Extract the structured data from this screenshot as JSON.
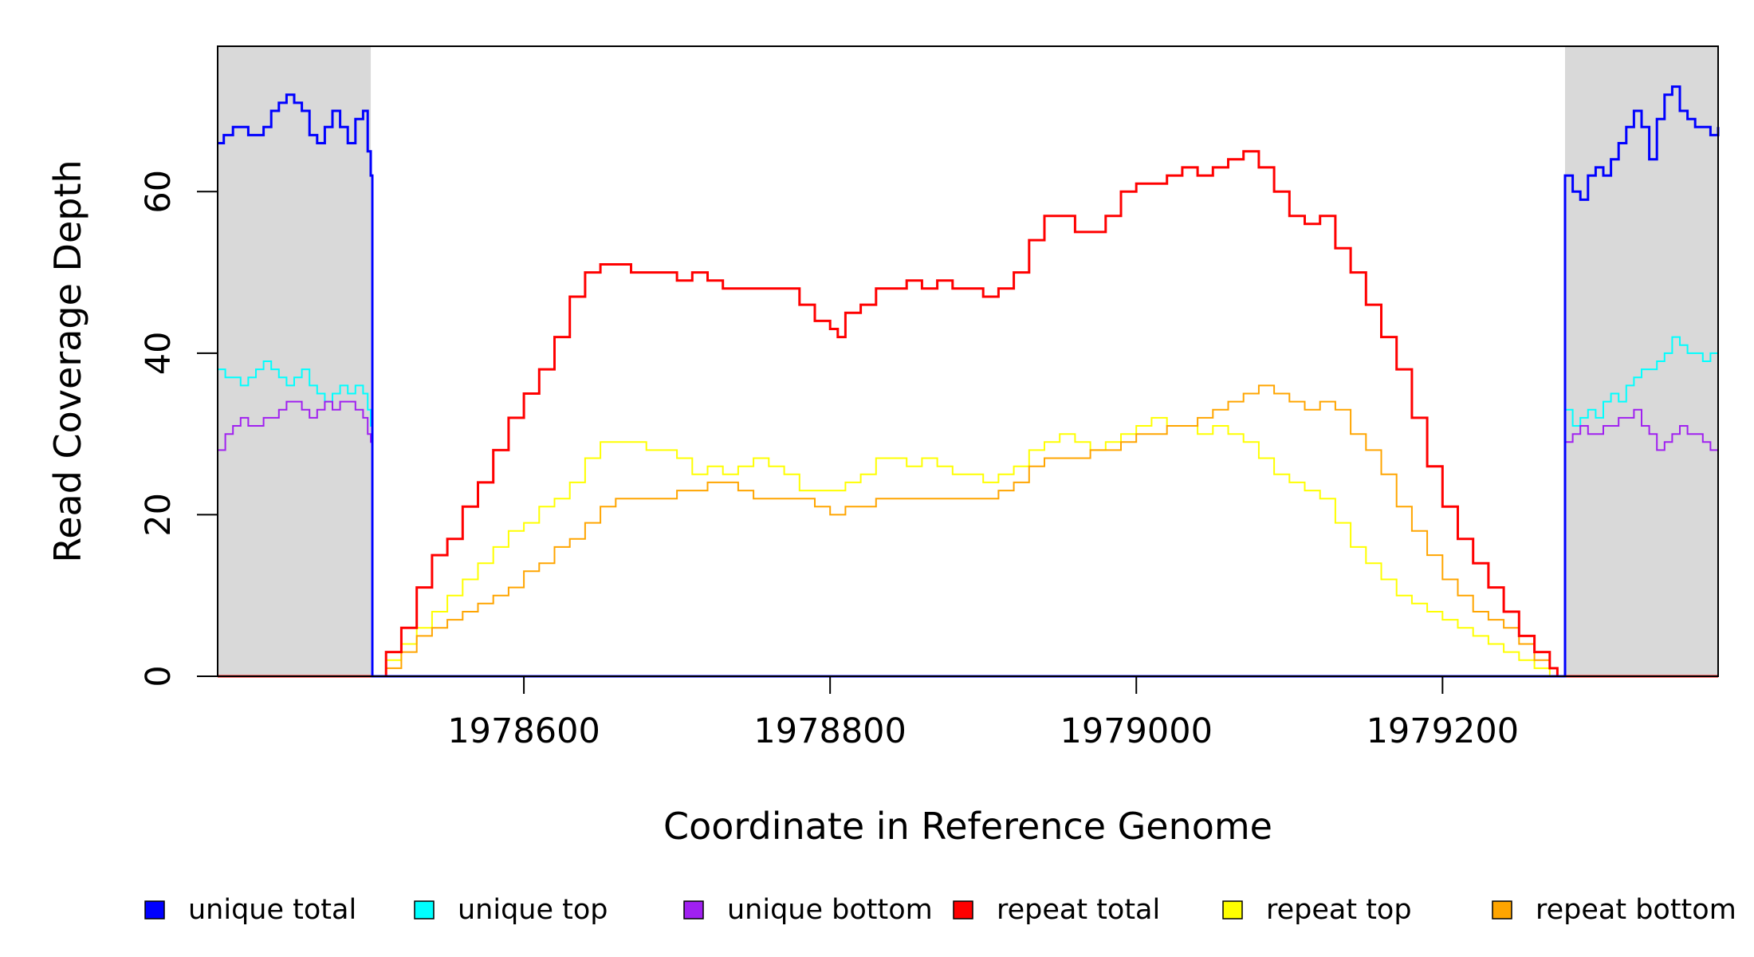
{
  "chart_data": {
    "type": "line",
    "title": "",
    "xlabel": "Coordinate in Reference Genome",
    "ylabel": "Read Coverage Depth",
    "xlim": [
      1978400,
      1979380
    ],
    "ylim": [
      0,
      78
    ],
    "x_ticks": [
      1978600,
      1978800,
      1979000,
      1979200
    ],
    "y_ticks": [
      0,
      20,
      40,
      60
    ],
    "grid": false,
    "shaded_regions": [
      {
        "x_start": 1978400,
        "x_end": 1978500,
        "color": "#d9d9d9"
      },
      {
        "x_start": 1979280,
        "x_end": 1979380,
        "color": "#d9d9d9"
      }
    ],
    "legend_position": "bottom",
    "series": [
      {
        "name": "unique total",
        "color": "#0000ff",
        "step": true,
        "x": [
          1978400,
          1978404,
          1978410,
          1978420,
          1978425,
          1978430,
          1978435,
          1978440,
          1978445,
          1978450,
          1978455,
          1978460,
          1978465,
          1978470,
          1978475,
          1978480,
          1978485,
          1978490,
          1978495,
          1978498,
          1978500,
          1978501,
          1979279,
          1979280,
          1979285,
          1979290,
          1979295,
          1979300,
          1979305,
          1979310,
          1979315,
          1979320,
          1979325,
          1979330,
          1979335,
          1979340,
          1979345,
          1979350,
          1979355,
          1979360,
          1979365,
          1979370,
          1979375,
          1979380
        ],
        "y": [
          66,
          67,
          68,
          67,
          67,
          68,
          70,
          71,
          72,
          71,
          70,
          67,
          66,
          68,
          70,
          68,
          66,
          69,
          70,
          65,
          62,
          0,
          0,
          62,
          60,
          59,
          62,
          63,
          62,
          64,
          66,
          68,
          70,
          68,
          64,
          69,
          72,
          73,
          70,
          69,
          68,
          68,
          67,
          68
        ]
      },
      {
        "name": "unique top",
        "color": "#00ffff",
        "step": true,
        "x": [
          1978400,
          1978405,
          1978410,
          1978415,
          1978420,
          1978425,
          1978430,
          1978435,
          1978440,
          1978445,
          1978450,
          1978455,
          1978460,
          1978465,
          1978470,
          1978475,
          1978480,
          1978485,
          1978490,
          1978495,
          1978498,
          1978500,
          1978501,
          1979279,
          1979280,
          1979285,
          1979290,
          1979295,
          1979300,
          1979305,
          1979310,
          1979315,
          1979320,
          1979325,
          1979330,
          1979335,
          1979340,
          1979345,
          1979350,
          1979355,
          1979360,
          1979365,
          1979370,
          1979375,
          1979380
        ],
        "y": [
          38,
          37,
          37,
          36,
          37,
          38,
          39,
          38,
          37,
          36,
          37,
          38,
          36,
          35,
          34,
          35,
          36,
          35,
          36,
          35,
          33,
          31,
          0,
          0,
          33,
          31,
          32,
          33,
          32,
          34,
          35,
          34,
          36,
          37,
          38,
          38,
          39,
          40,
          42,
          41,
          40,
          40,
          39,
          40,
          40
        ]
      },
      {
        "name": "unique bottom",
        "color": "#a020f0",
        "step": true,
        "x": [
          1978400,
          1978405,
          1978410,
          1978415,
          1978420,
          1978425,
          1978430,
          1978435,
          1978440,
          1978445,
          1978450,
          1978455,
          1978460,
          1978465,
          1978470,
          1978475,
          1978480,
          1978485,
          1978490,
          1978495,
          1978498,
          1978500,
          1978501,
          1979279,
          1979280,
          1979285,
          1979290,
          1979295,
          1979300,
          1979305,
          1979310,
          1979315,
          1979320,
          1979325,
          1979330,
          1979335,
          1979340,
          1979345,
          1979350,
          1979355,
          1979360,
          1979365,
          1979370,
          1979375,
          1979380
        ],
        "y": [
          28,
          30,
          31,
          32,
          31,
          31,
          32,
          32,
          33,
          34,
          34,
          33,
          32,
          33,
          34,
          33,
          34,
          34,
          33,
          32,
          30,
          29,
          0,
          0,
          29,
          30,
          31,
          30,
          30,
          31,
          31,
          32,
          32,
          33,
          31,
          30,
          28,
          29,
          30,
          31,
          30,
          30,
          29,
          28,
          28
        ]
      },
      {
        "name": "repeat total",
        "color": "#ff0000",
        "step": true,
        "x": [
          1978400,
          1978500,
          1978510,
          1978520,
          1978530,
          1978540,
          1978550,
          1978560,
          1978570,
          1978580,
          1978590,
          1978600,
          1978610,
          1978620,
          1978630,
          1978640,
          1978650,
          1978660,
          1978670,
          1978680,
          1978690,
          1978700,
          1978710,
          1978720,
          1978730,
          1978740,
          1978750,
          1978760,
          1978770,
          1978780,
          1978790,
          1978800,
          1978805,
          1978810,
          1978820,
          1978830,
          1978840,
          1978850,
          1978860,
          1978870,
          1978880,
          1978890,
          1978900,
          1978910,
          1978920,
          1978930,
          1978940,
          1978950,
          1978960,
          1978970,
          1978980,
          1978990,
          1979000,
          1979010,
          1979020,
          1979030,
          1979040,
          1979050,
          1979060,
          1979070,
          1979080,
          1979090,
          1979100,
          1979110,
          1979120,
          1979130,
          1979140,
          1979150,
          1979160,
          1979170,
          1979180,
          1979190,
          1979200,
          1979210,
          1979220,
          1979230,
          1979240,
          1979250,
          1979260,
          1979270,
          1979275,
          1979280,
          1979380
        ],
        "y": [
          0,
          0,
          3,
          6,
          11,
          15,
          17,
          21,
          24,
          28,
          32,
          35,
          38,
          42,
          47,
          50,
          51,
          51,
          50,
          50,
          50,
          49,
          50,
          49,
          48,
          48,
          48,
          48,
          48,
          46,
          44,
          43,
          42,
          45,
          46,
          48,
          48,
          49,
          48,
          49,
          48,
          48,
          47,
          48,
          50,
          54,
          57,
          57,
          55,
          55,
          57,
          60,
          61,
          61,
          62,
          63,
          62,
          63,
          64,
          65,
          63,
          60,
          57,
          56,
          57,
          53,
          50,
          46,
          42,
          38,
          32,
          26,
          21,
          17,
          14,
          11,
          8,
          5,
          3,
          1,
          0,
          0,
          0
        ]
      },
      {
        "name": "repeat top",
        "color": "#ffff00",
        "step": true,
        "x": [
          1978400,
          1978500,
          1978510,
          1978520,
          1978530,
          1978540,
          1978550,
          1978560,
          1978570,
          1978580,
          1978590,
          1978600,
          1978610,
          1978620,
          1978630,
          1978640,
          1978650,
          1978660,
          1978670,
          1978680,
          1978690,
          1978700,
          1978710,
          1978720,
          1978730,
          1978740,
          1978750,
          1978760,
          1978770,
          1978780,
          1978790,
          1978800,
          1978810,
          1978820,
          1978830,
          1978840,
          1978850,
          1978860,
          1978870,
          1978880,
          1978890,
          1978900,
          1978910,
          1978920,
          1978930,
          1978940,
          1978950,
          1978960,
          1978970,
          1978980,
          1978990,
          1979000,
          1979010,
          1979020,
          1979030,
          1979040,
          1979050,
          1979060,
          1979070,
          1979080,
          1979090,
          1979100,
          1979110,
          1979120,
          1979130,
          1979140,
          1979150,
          1979160,
          1979170,
          1979180,
          1979190,
          1979200,
          1979210,
          1979220,
          1979230,
          1979240,
          1979250,
          1979260,
          1979270,
          1979275,
          1979280,
          1979380
        ],
        "y": [
          0,
          0,
          2,
          4,
          6,
          8,
          10,
          12,
          14,
          16,
          18,
          19,
          21,
          22,
          24,
          27,
          29,
          29,
          29,
          28,
          28,
          27,
          25,
          26,
          25,
          26,
          27,
          26,
          25,
          23,
          23,
          23,
          24,
          25,
          27,
          27,
          26,
          27,
          26,
          25,
          25,
          24,
          25,
          26,
          28,
          29,
          30,
          29,
          28,
          29,
          30,
          31,
          32,
          31,
          31,
          30,
          31,
          30,
          29,
          27,
          25,
          24,
          23,
          22,
          19,
          16,
          14,
          12,
          10,
          9,
          8,
          7,
          6,
          5,
          4,
          3,
          2,
          1,
          0,
          0,
          0,
          0
        ]
      },
      {
        "name": "repeat bottom",
        "color": "#ffa500",
        "step": true,
        "x": [
          1978400,
          1978500,
          1978510,
          1978520,
          1978530,
          1978540,
          1978550,
          1978560,
          1978570,
          1978580,
          1978590,
          1978600,
          1978610,
          1978620,
          1978630,
          1978640,
          1978650,
          1978660,
          1978670,
          1978680,
          1978690,
          1978700,
          1978710,
          1978720,
          1978730,
          1978740,
          1978750,
          1978760,
          1978770,
          1978780,
          1978790,
          1978800,
          1978810,
          1978820,
          1978830,
          1978840,
          1978850,
          1978860,
          1978870,
          1978880,
          1978890,
          1978900,
          1978910,
          1978920,
          1978930,
          1978940,
          1978950,
          1978960,
          1978970,
          1978980,
          1978990,
          1979000,
          1979010,
          1979020,
          1979030,
          1979040,
          1979050,
          1979060,
          1979070,
          1979080,
          1979090,
          1979100,
          1979110,
          1979120,
          1979130,
          1979140,
          1979150,
          1979160,
          1979170,
          1979180,
          1979190,
          1979200,
          1979210,
          1979220,
          1979230,
          1979240,
          1979250,
          1979260,
          1979270,
          1979275,
          1979280,
          1979380
        ],
        "y": [
          0,
          0,
          1,
          3,
          5,
          6,
          7,
          8,
          9,
          10,
          11,
          13,
          14,
          16,
          17,
          19,
          21,
          22,
          22,
          22,
          22,
          23,
          23,
          24,
          24,
          23,
          22,
          22,
          22,
          22,
          21,
          20,
          21,
          21,
          22,
          22,
          22,
          22,
          22,
          22,
          22,
          22,
          23,
          24,
          26,
          27,
          27,
          27,
          28,
          28,
          29,
          30,
          30,
          31,
          31,
          32,
          33,
          34,
          35,
          36,
          35,
          34,
          33,
          34,
          33,
          30,
          28,
          25,
          21,
          18,
          15,
          12,
          10,
          8,
          7,
          6,
          4,
          2,
          1,
          0,
          0,
          0
        ]
      }
    ]
  }
}
